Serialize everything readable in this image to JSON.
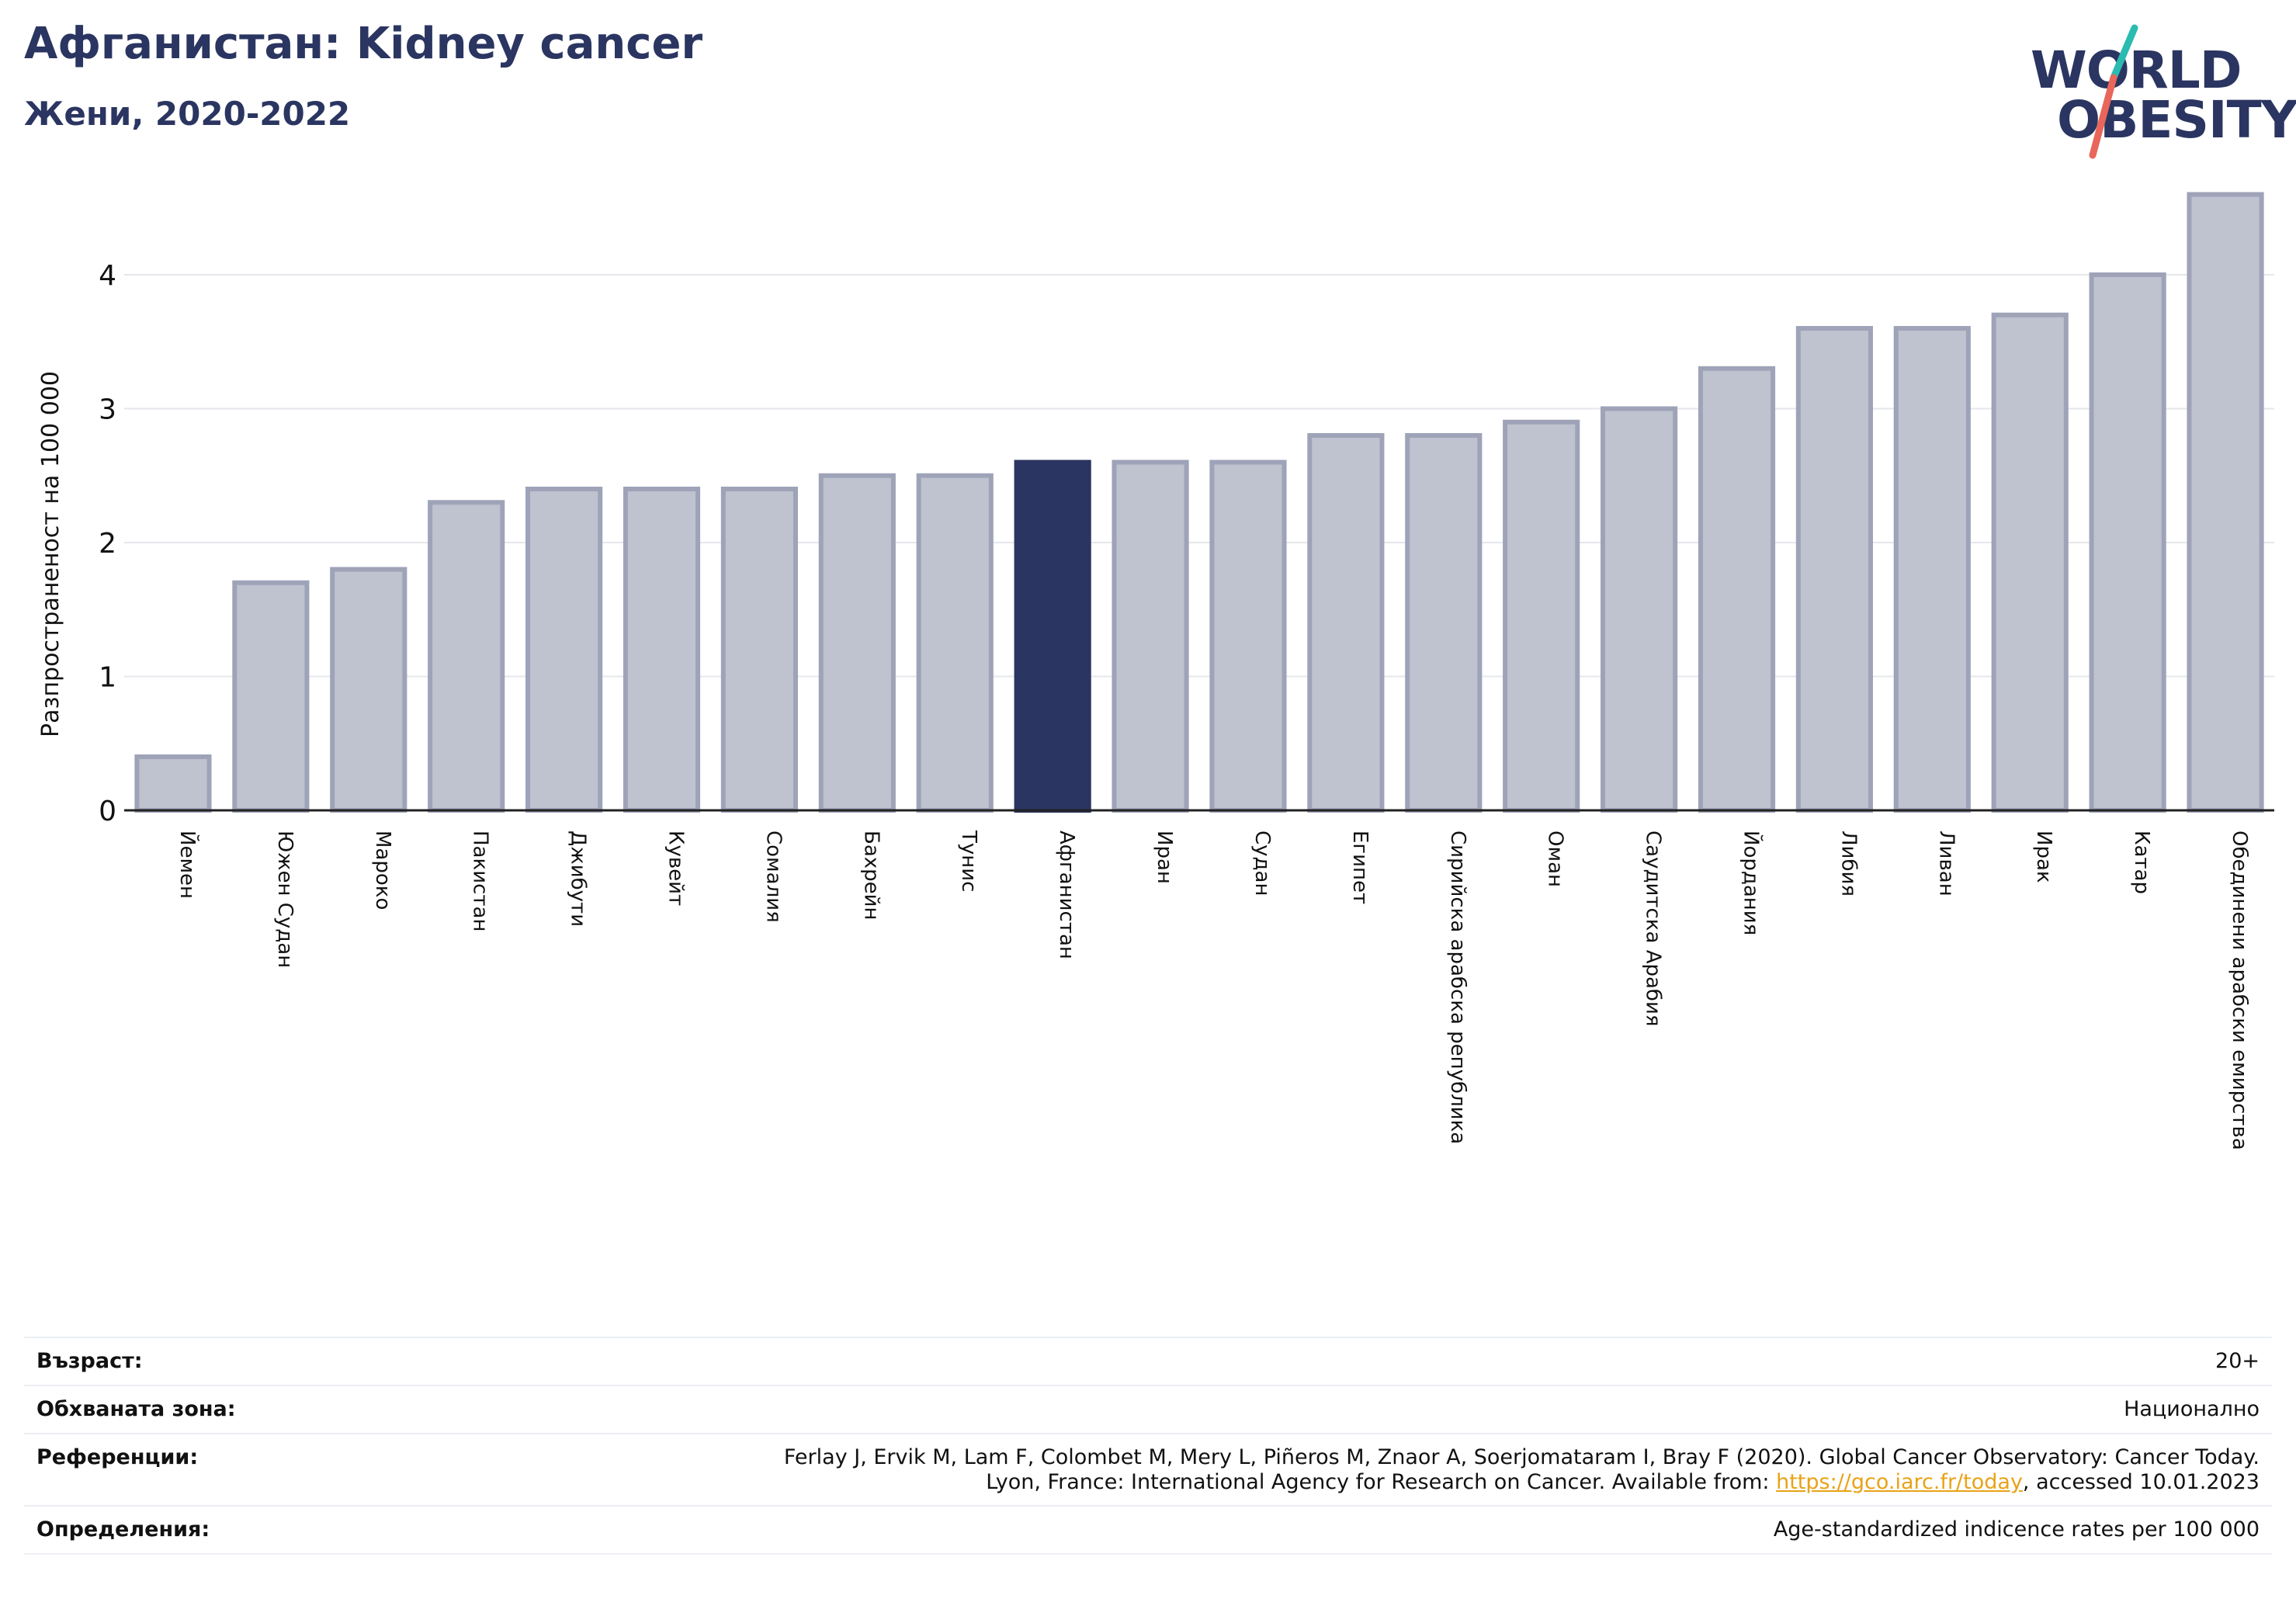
{
  "header": {
    "title": "Афганистан: Kidney cancer",
    "subtitle": "Жени, 2020-2022"
  },
  "logo": {
    "line1": "WORLD",
    "line2": "OBESITY",
    "brand_color": "#2b3561",
    "accent_colors": [
      "#2bbbb0",
      "#e8675a"
    ]
  },
  "chart_data": {
    "type": "bar",
    "ylabel": "Разпространеност  на 100 000",
    "ylim": [
      0,
      4.6
    ],
    "yticks": [
      0,
      1,
      2,
      3,
      4
    ],
    "grid": true,
    "highlight_color": "#2b3561",
    "bar_color": "#bfc2cf",
    "bar_edge_color": "#9ea3b8",
    "highlight_category": "Афганистан",
    "categories": [
      "Йемен",
      "Южен Судан",
      "Мароко",
      "Пакистан",
      "Джибути",
      "Кувейт",
      "Сомалия",
      "Бахрейн",
      "Тунис",
      "Афганистан",
      "Иран",
      "Судан",
      "Египет",
      "Сирийска арабска република",
      "Оман",
      "Саудитска Арабия",
      "Йордания",
      "Либия",
      "Ливан",
      "Ирак",
      "Катар",
      "Обединени арабски емирства"
    ],
    "values": [
      0.4,
      1.7,
      1.8,
      2.3,
      2.4,
      2.4,
      2.4,
      2.5,
      2.5,
      2.6,
      2.6,
      2.6,
      2.8,
      2.8,
      2.9,
      3.0,
      3.3,
      3.6,
      3.6,
      3.7,
      4.0,
      4.6
    ]
  },
  "info": {
    "age_label": "Възраст:",
    "age_value": "20+",
    "coverage_label": "Обхваната зона:",
    "coverage_value": "Национално",
    "references_label": "Референции:",
    "references_line1": "Ferlay J, Ervik M, Lam F, Colombet M, Mery L, Piñeros M, Znaor A, Soerjomataram I, Bray F (2020). Global Cancer Observatory: Cancer Today.",
    "references_line2_pre": "Lyon, France: International Agency for Research on Cancer. Available from: ",
    "references_link": "https://gco.iarc.fr/today",
    "references_line2_post": ", accessed 10.01.2023",
    "definitions_label": "Определения:",
    "definitions_value": "Age-standardized indicence rates per 100 000"
  }
}
